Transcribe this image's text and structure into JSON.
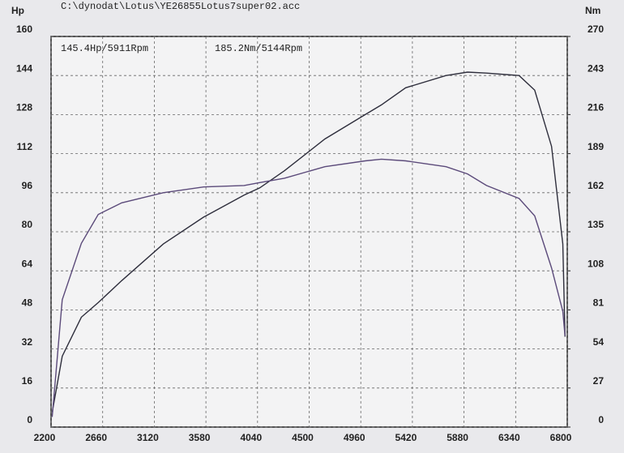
{
  "chart_data": {
    "type": "line",
    "title": "C:\\dynodat\\Lotus\\YE26855Lotus7super02.acc",
    "y_label": "Hp",
    "y2_label": "Nm",
    "annotations": [
      "145.4Hp/5911Rpm",
      "185.2Nm/5144Rpm"
    ],
    "x": [
      2210,
      2300,
      2470,
      2620,
      2830,
      3200,
      3560,
      3920,
      4060,
      4280,
      4640,
      5000,
      5144,
      5360,
      5720,
      5911,
      6080,
      6370,
      6510,
      6660,
      6760,
      6780
    ],
    "series": [
      {
        "name": "Hp",
        "color": "#2e2e3c",
        "values": [
          6,
          29,
          45,
          51,
          60,
          75,
          86,
          95,
          98,
          105,
          118,
          128,
          132,
          139,
          144,
          145.4,
          145,
          144,
          138,
          115,
          75,
          37
        ]
      },
      {
        "name": "Nm",
        "color": "#5b4a7a",
        "axis": "y2",
        "values": [
          7,
          88,
          127,
          147,
          155,
          162,
          166,
          167,
          169,
          172,
          180,
          184,
          185.2,
          184,
          180,
          175,
          167,
          158,
          146,
          110,
          80,
          63
        ]
      }
    ],
    "xlim": [
      2200,
      6800
    ],
    "xticks": [
      2200,
      2660,
      3120,
      3580,
      4040,
      4500,
      4960,
      5420,
      5880,
      6340,
      6800
    ],
    "ylim": [
      0,
      160
    ],
    "yticks": [
      0,
      16,
      32,
      48,
      64,
      80,
      96,
      112,
      128,
      144,
      160
    ],
    "y2lim": [
      0,
      270
    ],
    "y2ticks": [
      0,
      27,
      54,
      81,
      108,
      135,
      162,
      189,
      216,
      243,
      270
    ],
    "grid": true
  }
}
